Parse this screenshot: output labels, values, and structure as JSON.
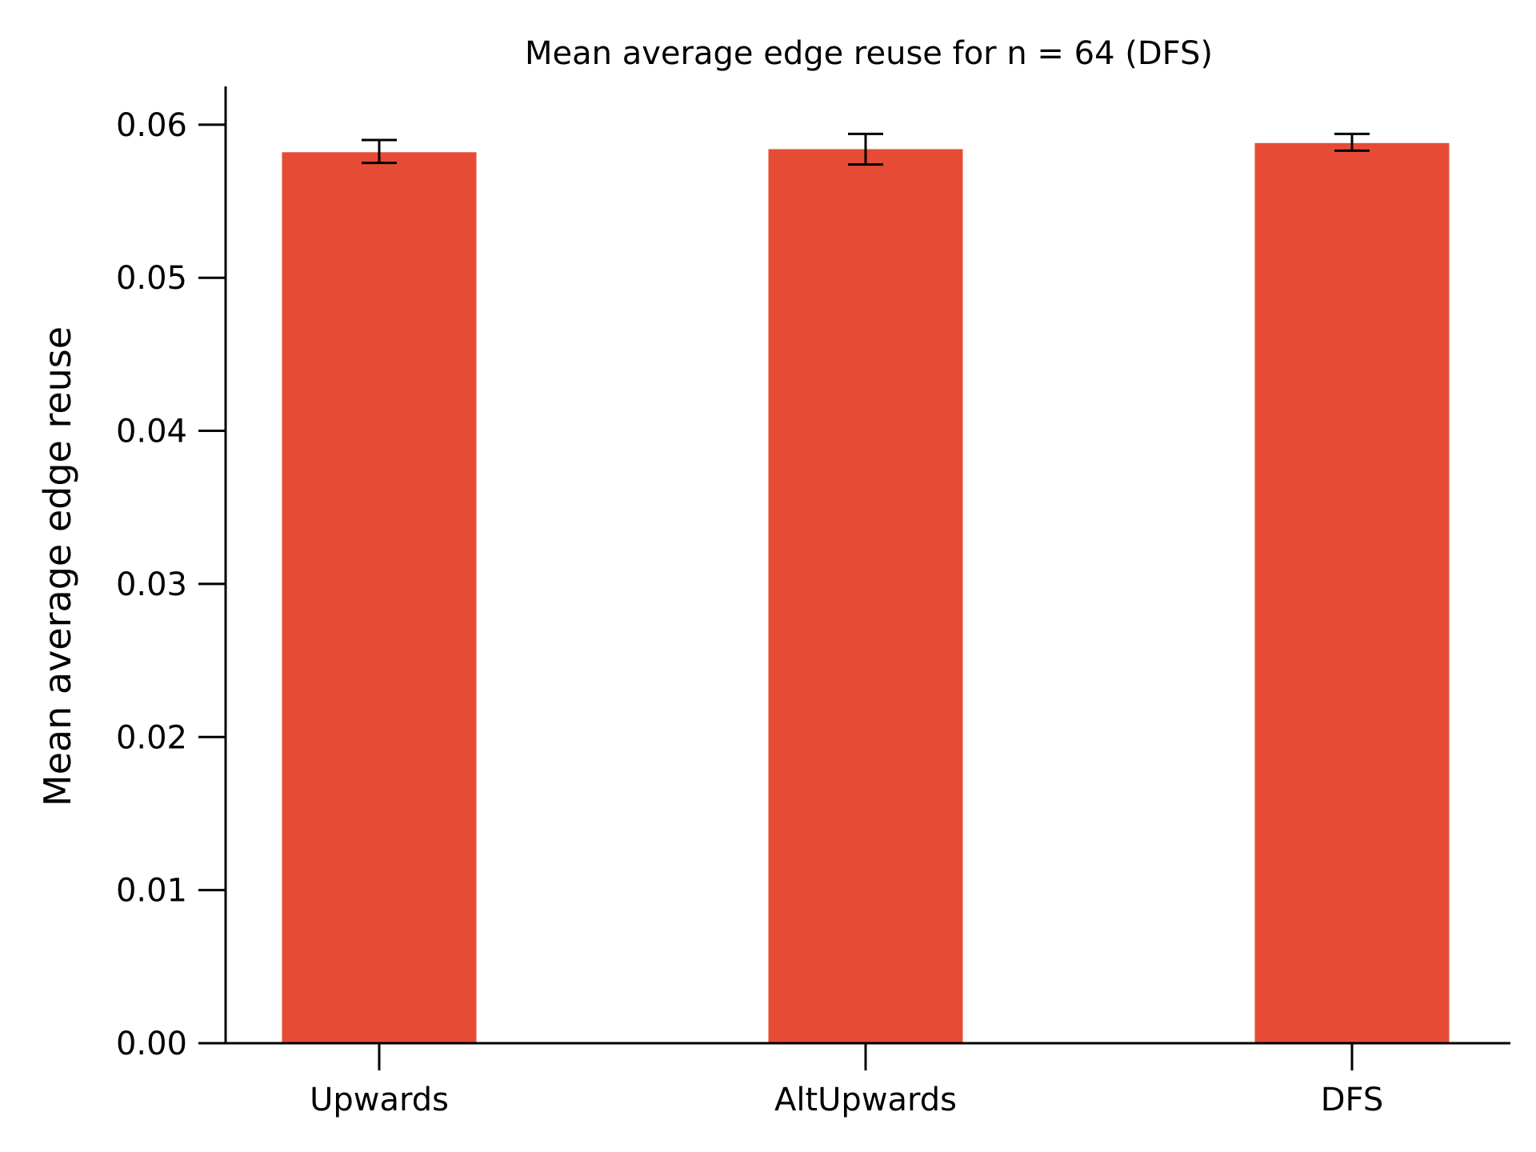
{
  "chart_data": {
    "type": "bar",
    "title": "Mean average edge reuse for n = 64 (DFS)",
    "xlabel": "",
    "ylabel": "Mean average edge reuse",
    "categories": [
      "Upwards",
      "AltUpwards",
      "DFS"
    ],
    "values": [
      0.0582,
      0.0584,
      0.0588
    ],
    "error_low": [
      0.0575,
      0.0574,
      0.0583
    ],
    "error_high": [
      0.059,
      0.0594,
      0.0594
    ],
    "ylim": [
      0,
      0.0625
    ],
    "yticks": [
      0.0,
      0.01,
      0.02,
      0.03,
      0.04,
      0.05,
      0.06
    ],
    "ytick_labels": [
      "0.00",
      "0.01",
      "0.02",
      "0.03",
      "0.04",
      "0.05",
      "0.06"
    ],
    "grid": false,
    "legend": "none",
    "colors": {
      "bar": "#e64c35",
      "errorbar": "#000000",
      "axis": "#000000"
    }
  }
}
